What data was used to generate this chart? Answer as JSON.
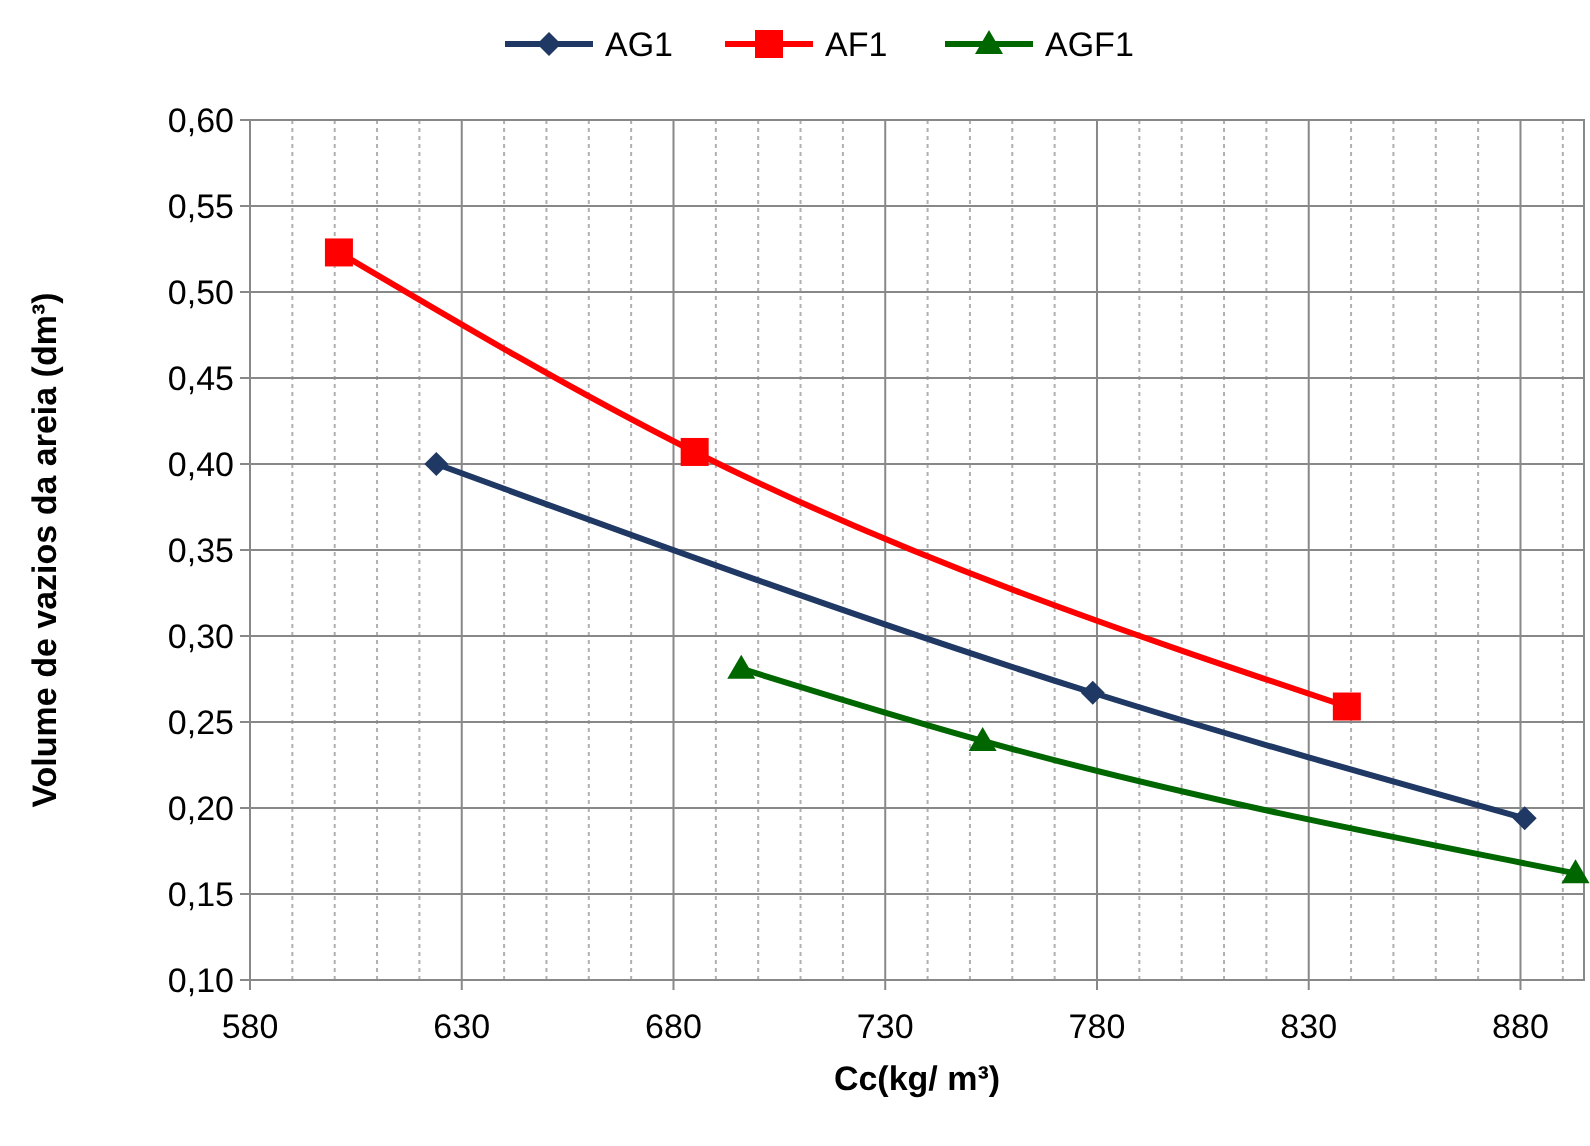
{
  "chart_data": {
    "type": "line",
    "xlabel": "Cc(kg/ m³)",
    "ylabel": "Volume de vazios da areia (dm³)",
    "xlim": [
      580,
      895
    ],
    "xticks": [
      580,
      630,
      680,
      730,
      780,
      830,
      880
    ],
    "ylim": [
      0.1,
      0.6
    ],
    "yticks": [
      {
        "value": 0.1,
        "label": "0,10"
      },
      {
        "value": 0.15,
        "label": "0,15"
      },
      {
        "value": 0.2,
        "label": "0,20"
      },
      {
        "value": 0.25,
        "label": "0,25"
      },
      {
        "value": 0.3,
        "label": "0,30"
      },
      {
        "value": 0.35,
        "label": "0,35"
      },
      {
        "value": 0.4,
        "label": "0,40"
      },
      {
        "value": 0.45,
        "label": "0,45"
      },
      {
        "value": 0.5,
        "label": "0,50"
      },
      {
        "value": 0.55,
        "label": "0,55"
      },
      {
        "value": 0.6,
        "label": "0,60"
      }
    ],
    "grid": true,
    "legend": "top",
    "line_style": "solid",
    "series": [
      {
        "name": "AG1",
        "color": "#1f3864",
        "marker": "diamond",
        "x": [
          624,
          779,
          881
        ],
        "values": [
          0.4,
          0.267,
          0.194
        ]
      },
      {
        "name": "AF1",
        "color": "#ff0000",
        "marker": "square",
        "x": [
          601,
          685,
          839
        ],
        "values": [
          0.523,
          0.407,
          0.259
        ]
      },
      {
        "name": "AGF1",
        "color": "#006600",
        "marker": "triangle",
        "x": [
          696,
          753,
          893
        ],
        "values": [
          0.281,
          0.239,
          0.162
        ]
      }
    ]
  }
}
